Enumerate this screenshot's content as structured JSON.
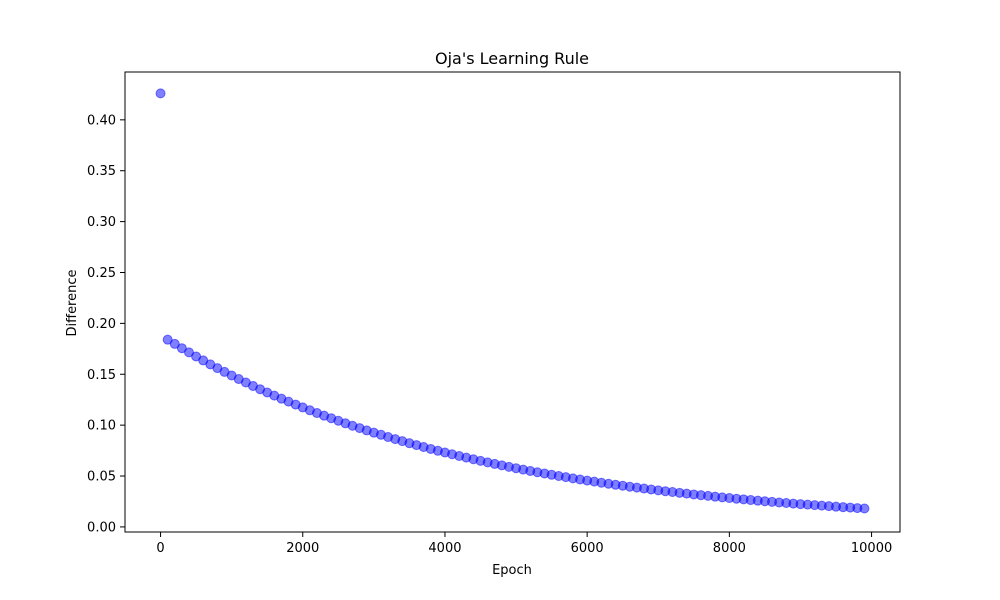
{
  "chart_data": {
    "type": "scatter",
    "title": "Oja's Learning Rule",
    "xlabel": "Epoch",
    "ylabel": "Difference",
    "xlim": [
      -500,
      10400
    ],
    "ylim": [
      -0.005,
      0.447
    ],
    "x_ticks": [
      0,
      2000,
      4000,
      6000,
      8000,
      10000
    ],
    "x_tick_labels": [
      "0",
      "2000",
      "4000",
      "6000",
      "8000",
      "10000"
    ],
    "y_ticks": [
      0.0,
      0.05,
      0.1,
      0.15,
      0.2,
      0.25,
      0.3,
      0.35,
      0.4
    ],
    "y_tick_labels": [
      "0.00",
      "0.05",
      "0.10",
      "0.15",
      "0.20",
      "0.25",
      "0.30",
      "0.35",
      "0.40"
    ],
    "grid": false,
    "marker_color": "#0000ff",
    "marker_alpha": 0.5,
    "series": [
      {
        "x": [
          0,
          100,
          200,
          300,
          400,
          500,
          600,
          700,
          800,
          900,
          1000,
          1100,
          1200,
          1300,
          1400,
          1500,
          1600,
          1700,
          1800,
          1900,
          2000,
          2100,
          2200,
          2300,
          2400,
          2500,
          2600,
          2700,
          2800,
          2900,
          3000,
          3100,
          3200,
          3300,
          3400,
          3500,
          3600,
          3700,
          3800,
          3900,
          4000,
          4100,
          4200,
          4300,
          4400,
          4500,
          4600,
          4700,
          4800,
          4900,
          5000,
          5100,
          5200,
          5300,
          5400,
          5500,
          5600,
          5700,
          5800,
          5900,
          6000,
          6100,
          6200,
          6300,
          6400,
          6500,
          6600,
          6700,
          6800,
          6900,
          7000,
          7100,
          7200,
          7300,
          7400,
          7500,
          7600,
          7700,
          7800,
          7900,
          8000,
          8100,
          8200,
          8300,
          8400,
          8500,
          8600,
          8700,
          8800,
          8900,
          9000,
          9100,
          9200,
          9300,
          9400,
          9500,
          9600,
          9700,
          9800,
          9900
        ],
        "values": [
          0.426,
          0.184,
          0.1798,
          0.1756,
          0.1715,
          0.1675,
          0.1636,
          0.1597,
          0.156,
          0.1523,
          0.1488,
          0.1453,
          0.1419,
          0.1385,
          0.1353,
          0.1321,
          0.129,
          0.126,
          0.1231,
          0.1202,
          0.1174,
          0.1146,
          0.1119,
          0.1093,
          0.1068,
          0.1043,
          0.1018,
          0.0994,
          0.0971,
          0.0948,
          0.0926,
          0.0905,
          0.0883,
          0.0863,
          0.0843,
          0.0823,
          0.0804,
          0.0785,
          0.0766,
          0.0748,
          0.0731,
          0.0714,
          0.0697,
          0.0681,
          0.0665,
          0.0649,
          0.0634,
          0.0619,
          0.0605,
          0.059,
          0.0577,
          0.0563,
          0.055,
          0.0537,
          0.0525,
          0.0512,
          0.05,
          0.0489,
          0.0477,
          0.0466,
          0.0455,
          0.0445,
          0.0434,
          0.0424,
          0.0414,
          0.0405,
          0.0395,
          0.0386,
          0.0377,
          0.0368,
          0.0359,
          0.0351,
          0.0343,
          0.0335,
          0.0327,
          0.0319,
          0.0312,
          0.0305,
          0.0297,
          0.029,
          0.0284,
          0.0277,
          0.0271,
          0.0264,
          0.0258,
          0.0252,
          0.0246,
          0.024,
          0.0235,
          0.0229,
          0.0224,
          0.0219,
          0.0214,
          0.0209,
          0.0204,
          0.0199,
          0.0194,
          0.019,
          0.0185,
          0.0181
        ]
      }
    ]
  }
}
